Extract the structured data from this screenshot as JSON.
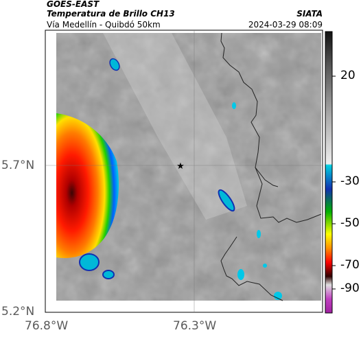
{
  "header": {
    "satellite": "GOES-EAST",
    "product": "Temperatura de Brillo CH13",
    "region": "Vía Medellín - Quibdó 50km",
    "agency": "SIATA",
    "timestamp": "2024-03-29 08:09"
  },
  "axes": {
    "y_ticks": [
      "5.7°N",
      "5.2°N"
    ],
    "x_ticks": [
      "76.8°W",
      "76.3°W"
    ]
  },
  "colorbar": {
    "ticks": [
      "20",
      "-30",
      "-50",
      "-70",
      "-90"
    ],
    "colors": [
      "#111111",
      "#8a8a8a",
      "#e8e8e8",
      "#00b4d8",
      "#2040c0",
      "#00c000",
      "#ffff00",
      "#ff8000",
      "#ff0000",
      "#400000",
      "#f0f0f0",
      "#c040c0"
    ]
  },
  "marker": {
    "icon": "star-marker-icon"
  }
}
